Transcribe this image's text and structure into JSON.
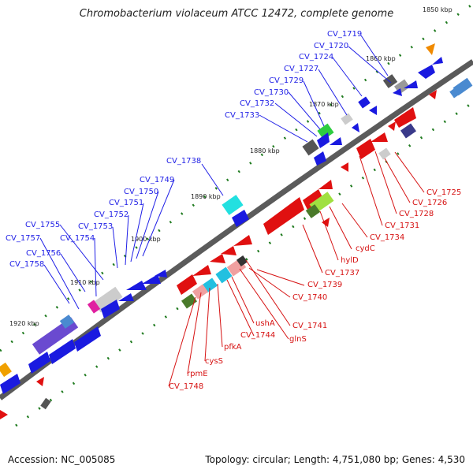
{
  "title": "Chromobacterium violaceum ATCC 12472, complete genome",
  "accession": "Accession: NC_005085",
  "summary": "Topology: circular; Length: 4,751,080 bp; Genes: 4,530",
  "colors": {
    "forward_label": "#1f1fe6",
    "reverse_label": "#d61212",
    "backbone": "#8a8a8a",
    "tick": "#1e7a1e"
  },
  "ticks": [
    "1850 kbp",
    "1860 kbp",
    "1870 kbp",
    "1880 kbp",
    "1890 kbp",
    "1900 kbp",
    "1910 kbp",
    "1920 kbp"
  ],
  "forward_labels": [
    "CV_1719",
    "CV_1720",
    "CV_1724",
    "CV_1727",
    "CV_1729",
    "CV_1730",
    "CV_1732",
    "CV_1733",
    "CV_1738",
    "CV_1749",
    "CV_1750",
    "CV_1751",
    "CV_1752",
    "CV_1753",
    "CV_1754",
    "CV_1755",
    "CV_1757",
    "CV_1756",
    "CV_1758"
  ],
  "reverse_labels": [
    "CV_1725",
    "CV_1726",
    "CV_1728",
    "CV_1731",
    "CV_1734",
    "cydC",
    "hylD",
    "CV_1737",
    "CV_1739",
    "CV_1740",
    "CV_1741",
    "glnS",
    "ushA",
    "CV_1744",
    "pfkA",
    "cysS",
    "rpmE",
    "CV_1748"
  ]
}
